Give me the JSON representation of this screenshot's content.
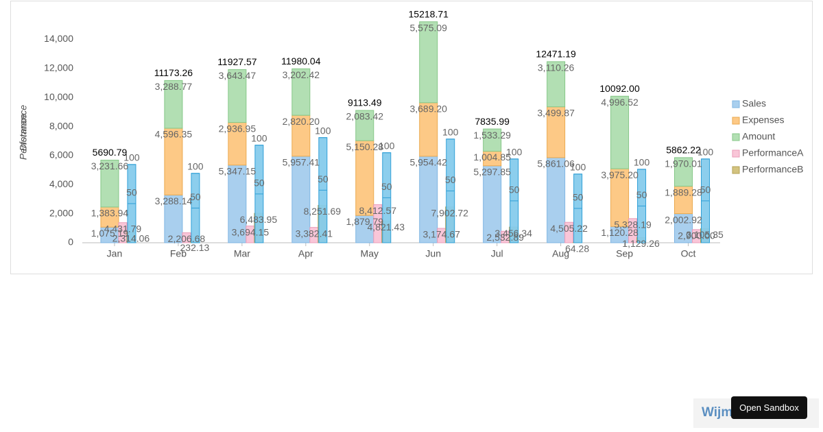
{
  "chart_data": {
    "type": "bar",
    "categories": [
      "Jan",
      "Feb",
      "Mar",
      "Apr",
      "May",
      "Jun",
      "Jul",
      "Aug",
      "Sep",
      "Oct"
    ],
    "y_axis_titles": [
      "Performance",
      "Distance"
    ],
    "ylim": [
      0,
      15300
    ],
    "yticks": [
      0,
      {
        "value": 2000,
        "label": "2,000"
      },
      {
        "value": 4000,
        "label": "4,000"
      },
      {
        "value": 6000,
        "label": "6,000"
      },
      {
        "value": 8000,
        "label": "8,000"
      },
      {
        "value": 10000,
        "label": "10,000"
      },
      {
        "value": 12000,
        "label": "12,000"
      },
      {
        "value": 14000,
        "label": "14,000"
      }
    ],
    "y2lim": [
      0,
      49000
    ],
    "total_labels": [
      "5690.79",
      "11173.26",
      "11927.57",
      "11980.04",
      "9113.49",
      "15218.71",
      "7835.99",
      "12471.19",
      "10092.00",
      "5862.22"
    ],
    "series": [
      {
        "name": "Sales",
        "color": "#a9cfee",
        "stroke": "#7fb5e2",
        "values": [
          1075.19,
          3288.14,
          5347.15,
          5957.41,
          1879.79,
          5954.42,
          5297.85,
          5861.06,
          1120.28,
          2002.92
        ],
        "value_labels": [
          "1,075.19",
          "3,288.14",
          "5,347.15",
          "5,957.41",
          "1,879.79",
          "5,954.42",
          "5,297.85",
          "5,861.06",
          "1,120.28",
          "2,002.92"
        ]
      },
      {
        "name": "Expenses",
        "color": "#fdc986",
        "stroke": "#eaa94f",
        "values": [
          1383.94,
          4596.35,
          2936.95,
          2820.2,
          5150.28,
          3689.2,
          1004.85,
          3499.87,
          3975.2,
          1889.28
        ],
        "value_labels": [
          "1,383.94",
          "4,596.35",
          "2,936.95",
          "2,820.20",
          "5,150.28",
          "3,689.20",
          "1,004.85",
          "3,499.87",
          "3,975.20",
          "1,889.28"
        ]
      },
      {
        "name": "Amount",
        "color": "#b2dfb3",
        "stroke": "#85c787",
        "values": [
          3231.66,
          3288.77,
          3643.47,
          3202.42,
          2083.42,
          5575.09,
          1533.29,
          3110.26,
          4996.52,
          1970.01
        ],
        "value_labels": [
          "3,231.66",
          "3,288.77",
          "3,643.47",
          "3,202.42",
          "2,083.42",
          "5,575.09",
          "1,533.29",
          "3,110.26",
          "4,996.52",
          "1,970.01"
        ]
      },
      {
        "name": "PerformanceA",
        "color": "#f9c6d8",
        "stroke": "#ea9cb8",
        "axis": "y2",
        "values": [
          4431.79,
          2206.68,
          3694.15,
          3382.41,
          8412.57,
          3174.67,
          2532.89,
          4505.22,
          5328.19,
          2900.0
        ],
        "value_labels": [
          "4,431.79",
          "2,206.68",
          "3,694.15",
          "3,382.41",
          "8,412.57",
          "3,174.67",
          "2,532.89",
          "4,505.22",
          "5,328.19",
          "2,900.00"
        ]
      },
      {
        "name": "PerformanceB",
        "color": "#d3c37f",
        "stroke": "#b3a155",
        "axis": "y2",
        "values": [
          2314.06,
          232.13,
          6483.95,
          8251.69,
          4821.43,
          7902.72,
          3456.34,
          64.28,
          1129.26,
          3105.35
        ],
        "value_labels": [
          "2,314.06",
          "232.13",
          "6,483.95",
          "8,251.69",
          "4,821.43",
          "7,902.72",
          "3,456.34",
          "64.28",
          "1,129.26",
          "3,105.35"
        ]
      }
    ],
    "distance": {
      "color": "#86cbec",
      "stroke": "#2f9fd6",
      "values": [
        5390,
        4780,
        6720,
        7240,
        6200,
        7140,
        5770,
        4730,
        5060,
        5770
      ],
      "ticks": [
        50,
        100
      ]
    }
  },
  "footer": {
    "brand": "Wijm",
    "button": "Open Sandbox"
  }
}
